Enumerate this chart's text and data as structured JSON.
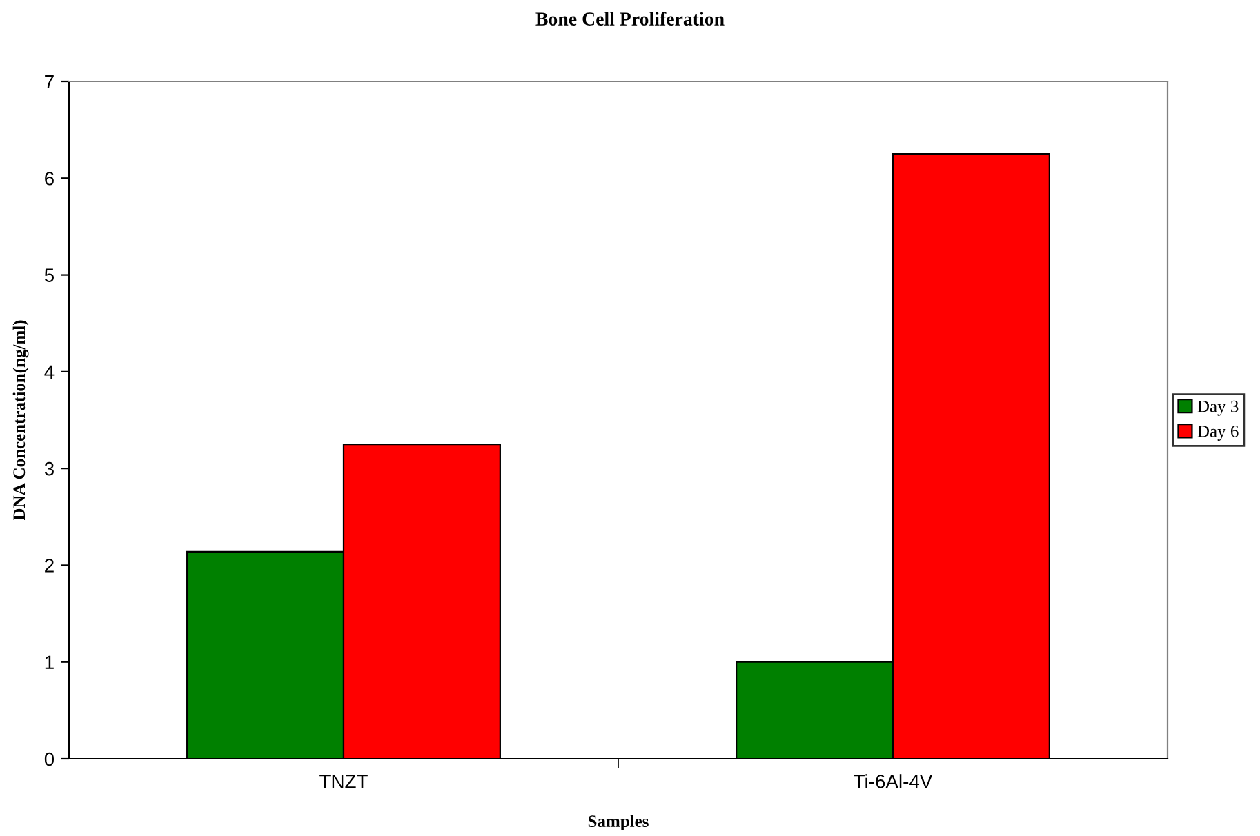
{
  "chart_data": {
    "type": "bar",
    "title": "Bone Cell Proliferation",
    "xlabel": "Samples",
    "ylabel": "DNA Concentration(ng/ml)",
    "categories": [
      "TNZT",
      "Ti-6Al-4V"
    ],
    "series": [
      {
        "name": "Day 3",
        "color": "#008000",
        "values": [
          2.14,
          1.0
        ]
      },
      {
        "name": "Day 6",
        "color": "#ff0000",
        "values": [
          3.25,
          6.25
        ]
      }
    ],
    "ylim": [
      0,
      7
    ],
    "yticks": [
      0,
      1,
      2,
      3,
      4,
      5,
      6,
      7
    ],
    "grid": false,
    "legend": "right"
  }
}
